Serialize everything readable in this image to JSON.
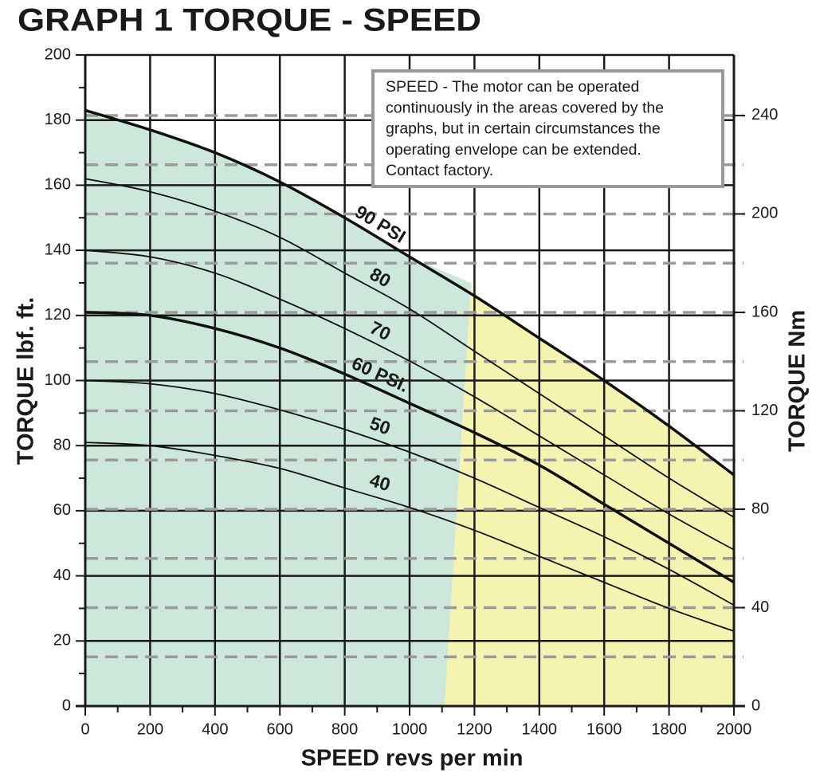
{
  "chart_data": {
    "type": "line",
    "title": "GRAPH 1 TORQUE - SPEED",
    "xlabel": "SPEED revs per min",
    "ylabel": "TORQUE lbf. ft.",
    "y2label": "TORQUE Nm",
    "x": [
      0,
      200,
      400,
      600,
      800,
      1000,
      1200,
      1400,
      1600,
      1800,
      2000
    ],
    "series": [
      {
        "name": "90 PSI",
        "color": "#111111",
        "width": 3.5,
        "values": [
          183,
          177,
          170,
          161,
          150,
          138,
          126,
          113,
          100,
          86,
          71
        ]
      },
      {
        "name": "80",
        "color": "#111111",
        "width": 1.8,
        "values": [
          162,
          158,
          152,
          144,
          133,
          122,
          109,
          96,
          83,
          70,
          58
        ]
      },
      {
        "name": "70",
        "color": "#111111",
        "width": 1.8,
        "values": [
          140,
          138,
          133,
          125,
          116,
          106,
          95,
          83,
          71,
          59,
          48
        ]
      },
      {
        "name": "60 PSI.",
        "color": "#111111",
        "width": 3.5,
        "values": [
          121,
          120,
          116,
          110,
          102,
          93,
          84,
          74,
          62,
          50,
          38
        ]
      },
      {
        "name": "50",
        "color": "#111111",
        "width": 1.8,
        "values": [
          100,
          99,
          96,
          91,
          85,
          78,
          70,
          61,
          52,
          42,
          31
        ]
      },
      {
        "name": "40",
        "color": "#111111",
        "width": 1.8,
        "values": [
          81,
          80,
          77,
          73,
          67,
          61,
          54,
          46,
          38,
          30,
          23
        ]
      }
    ],
    "shade_boundary": {
      "x": [
        1108,
        1190
      ],
      "y": [
        0,
        130
      ]
    },
    "shade_colors": [
      "#cde8db",
      "#f4f4b0"
    ],
    "xlim": [
      0,
      2000
    ],
    "xticks": [
      0,
      200,
      400,
      600,
      800,
      1000,
      1200,
      1400,
      1600,
      1800,
      2000
    ],
    "ylim": [
      0,
      200
    ],
    "yticks": [
      0,
      20,
      40,
      60,
      80,
      100,
      120,
      140,
      160,
      180,
      200
    ],
    "y2lim": [
      0,
      264.6
    ],
    "y2ticks": [
      0,
      40,
      80,
      120,
      160,
      200,
      240
    ],
    "grid": true,
    "annotation": [
      "SPEED - The motor can be operated",
      "continuously in the areas covered by the",
      "graphs, but in certain circumstances the",
      "operating envelope can be extended.",
      "Contact factory."
    ]
  }
}
